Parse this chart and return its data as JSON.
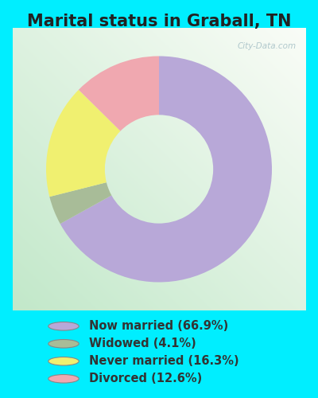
{
  "title": "Marital status in Graball, TN",
  "categories": [
    "Now married",
    "Widowed",
    "Never married",
    "Divorced"
  ],
  "values": [
    66.9,
    4.1,
    16.3,
    12.6
  ],
  "colors": [
    "#b8a8d8",
    "#a8bc98",
    "#f0f070",
    "#f0a8b0"
  ],
  "legend_labels": [
    "Now married (66.9%)",
    "Widowed (4.1%)",
    "Never married (16.3%)",
    "Divorced (12.6%)"
  ],
  "outer_bg": "#00eeff",
  "title_fontsize": 15,
  "title_color": "#222222",
  "watermark": "City-Data.com",
  "legend_fontsize": 10.5,
  "legend_text_color": "#333333"
}
